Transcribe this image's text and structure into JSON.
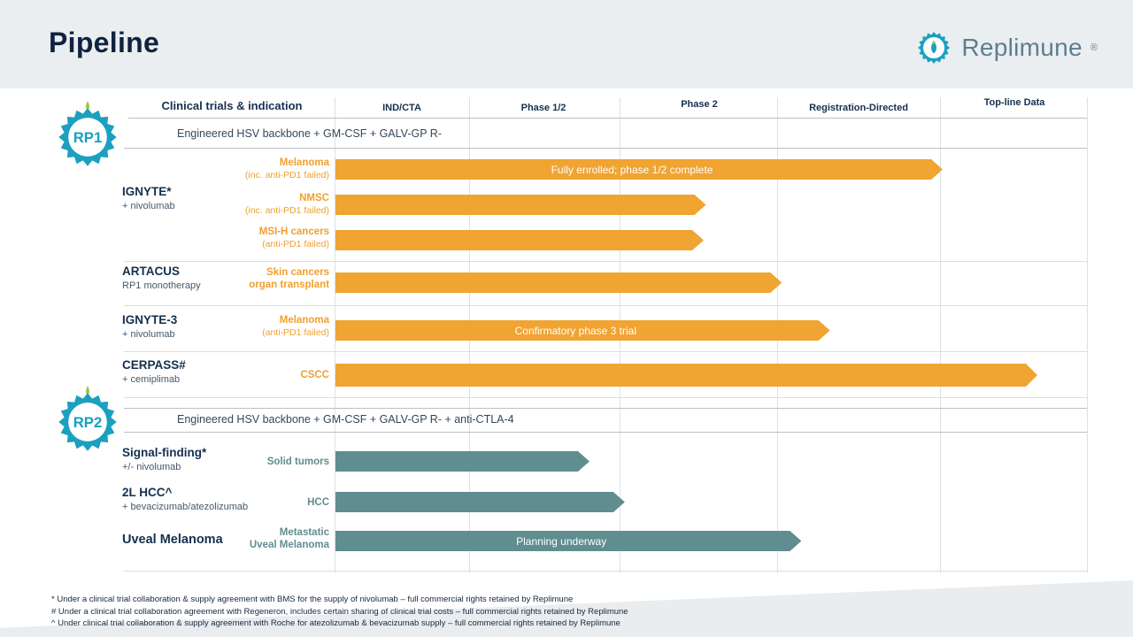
{
  "slide": {
    "title": "Pipeline",
    "brand": "Replimune",
    "registered": "®"
  },
  "header": {
    "indication_col": "Clinical trials & indication",
    "phases": [
      "IND/CTA",
      "Phase 1/2",
      "Phase 2",
      "Registration-Directed",
      "Top-line Data"
    ]
  },
  "sections": [
    {
      "badge": "RP1",
      "backbone": "Engineered HSV backbone + GM-CSF + GALV-GP R-"
    },
    {
      "badge": "RP2",
      "backbone": "Engineered HSV backbone + GM-CSF + GALV-GP R- + anti-CTLA-4"
    }
  ],
  "programs": [
    {
      "name": "IGNYTE*",
      "sub": "+ nivolumab"
    },
    {
      "name": "ARTACUS",
      "sub": "RP1 monotherapy"
    },
    {
      "name": "IGNYTE-3",
      "sub": "+ nivolumab"
    },
    {
      "name": "CERPASS#",
      "sub": "+ cemiplimab"
    },
    {
      "name": "Signal-finding*",
      "sub": "+/- nivolumab"
    },
    {
      "name": "2L HCC^",
      "sub": "+ bevacizumab/atezolizumab"
    },
    {
      "name": "Uveal Melanoma",
      "sub": ""
    }
  ],
  "chart_data": {
    "type": "timeline-bars",
    "title": "Pipeline",
    "phase_columns": [
      "IND/CTA",
      "Phase 1/2",
      "Phase 2",
      "Registration-Directed",
      "Top-line Data"
    ],
    "timeline_note": "bar end_pct is percent of the full IND/CTA-to-Top-line-Data axis",
    "bars": [
      {
        "indication": "Melanoma",
        "qualifier": "(inc. anti-PD1 failed)",
        "label": "Fully enrolled; phase 1/2 complete",
        "end_pct": 80.8,
        "color": "orange"
      },
      {
        "indication": "NMSC",
        "qualifier": "(inc. anti-PD1 failed)",
        "label": "",
        "end_pct": 49.3,
        "color": "orange"
      },
      {
        "indication": "MSI-H cancers",
        "qualifier": "(anti-PD1 failed)",
        "label": "",
        "end_pct": 49.0,
        "color": "orange"
      },
      {
        "indication": "Skin cancers",
        "qualifier": "organ transplant",
        "label": "",
        "end_pct": 59.4,
        "color": "orange"
      },
      {
        "indication": "Melanoma",
        "qualifier": "(anti-PD1 failed)",
        "label": "Confirmatory phase 3 trial",
        "end_pct": 65.8,
        "color": "orange"
      },
      {
        "indication": "CSCC",
        "qualifier": "",
        "label": "",
        "end_pct": 93.4,
        "color": "orange"
      },
      {
        "indication": "Solid tumors",
        "qualifier": "",
        "label": "",
        "end_pct": 33.8,
        "color": "teal"
      },
      {
        "indication": "HCC",
        "qualifier": "",
        "label": "",
        "end_pct": 38.5,
        "color": "teal"
      },
      {
        "indication": "Metastatic",
        "qualifier": "Uveal Melanoma",
        "label": "Planning underway",
        "end_pct": 62.0,
        "color": "teal"
      }
    ]
  },
  "footnotes": [
    "* Under a clinical trial collaboration & supply agreement with BMS for the supply of nivolumab – full commercial rights retained by Replimune",
    "# Under a clinical trial collaboration agreement with Regeneron, includes certain sharing of clinical trial costs – full commercial rights retained by Replimune",
    "^ Under clinical trial collaboration & supply agreement with Roche for atezolizumab & bevacizumab supply – full commercial rights retained by Replimune"
  ],
  "colors": {
    "bar_orange": "#F0A431",
    "bar_teal": "#5F8D90",
    "brand_teal": "#1BA0BF",
    "navy": "#0E2340"
  }
}
